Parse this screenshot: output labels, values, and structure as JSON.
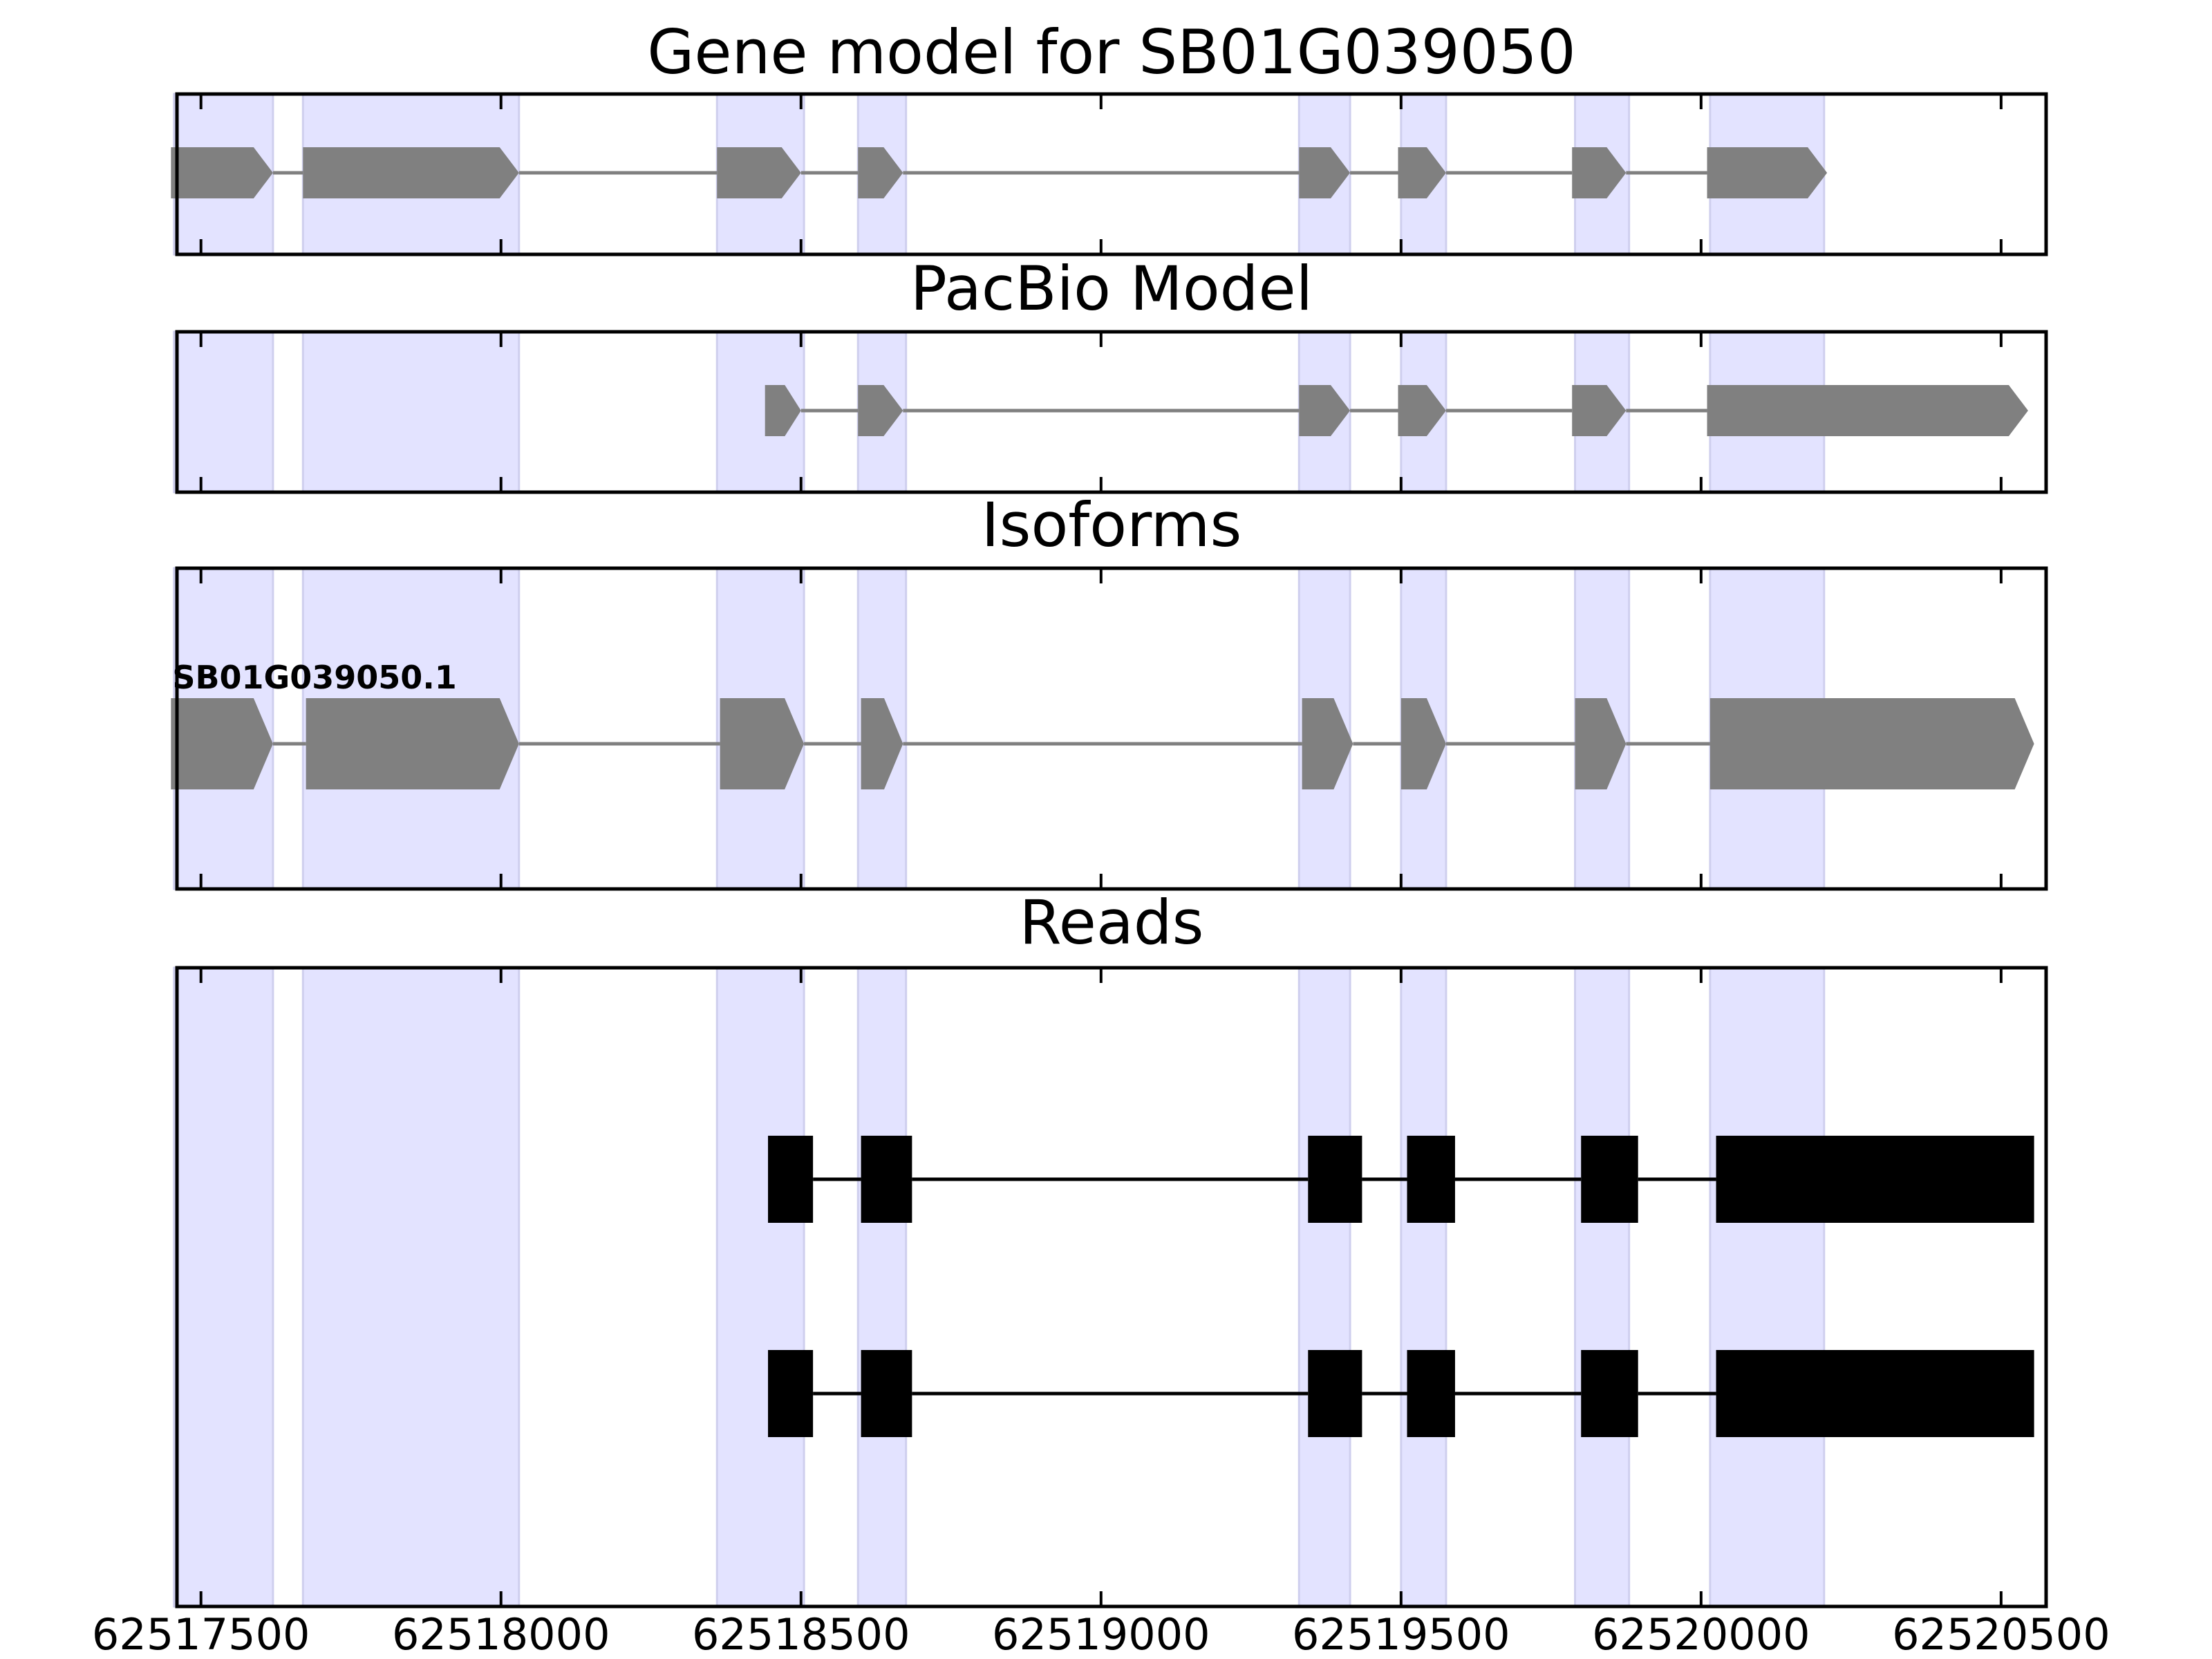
{
  "chart_data": [
    {
      "type": "gene-track",
      "title": "Gene model for SB01G039050",
      "strand": "+",
      "exons": [
        [
          62517450,
          62517620
        ],
        [
          62517670,
          62518030
        ],
        [
          62518360,
          62518500
        ],
        [
          62518595,
          62518670
        ],
        [
          62519330,
          62519415
        ],
        [
          62519495,
          62519575
        ],
        [
          62519785,
          62519875
        ],
        [
          62520010,
          62520210
        ]
      ]
    },
    {
      "type": "gene-track",
      "title": "PacBio Model",
      "strand": "+",
      "exons": [
        [
          62518440,
          62518500
        ],
        [
          62518595,
          62518670
        ],
        [
          62519330,
          62519415
        ],
        [
          62519495,
          62519575
        ],
        [
          62519785,
          62519875
        ],
        [
          62520010,
          62520545
        ]
      ]
    },
    {
      "type": "gene-track",
      "title": "Isoforms",
      "strand": "+",
      "isoforms": [
        {
          "name": "SB01G039050.1",
          "exons": [
            [
              62517450,
              62517620
            ],
            [
              62517675,
              62518030
            ],
            [
              62518365,
              62518505
            ],
            [
              62518600,
              62518670
            ],
            [
              62519335,
              62519420
            ],
            [
              62519500,
              62519575
            ],
            [
              62519790,
              62519875
            ],
            [
              62520015,
              62520555
            ]
          ]
        }
      ]
    },
    {
      "type": "read-track",
      "title": "Reads",
      "reads": [
        {
          "exons": [
            [
              62518445,
              62518520
            ],
            [
              62518600,
              62518685
            ],
            [
              62519345,
              62519435
            ],
            [
              62519510,
              62519590
            ],
            [
              62519800,
              62519895
            ],
            [
              62520025,
              62520555
            ]
          ]
        },
        {
          "exons": [
            [
              62518445,
              62518520
            ],
            [
              62518600,
              62518685
            ],
            [
              62519345,
              62519435
            ],
            [
              62519510,
              62519590
            ],
            [
              62519800,
              62519895
            ],
            [
              62520025,
              62520555
            ]
          ]
        }
      ]
    }
  ],
  "shared_x_axis": {
    "xlim": [
      62517460,
      62520575
    ],
    "ticks": [
      62517500,
      62518000,
      62518500,
      62519000,
      62519500,
      62520000,
      62520500
    ],
    "tick_labels": [
      "62517500",
      "62518000",
      "62518500",
      "62519000",
      "62519500",
      "62520000",
      "62520500"
    ]
  },
  "highlight_regions": [
    [
      62517455,
      62517620
    ],
    [
      62517670,
      62518030
    ],
    [
      62518360,
      62518505
    ],
    [
      62518595,
      62518675
    ],
    [
      62519330,
      62519415
    ],
    [
      62519500,
      62519575
    ],
    [
      62519790,
      62519880
    ],
    [
      62520015,
      62520205
    ]
  ],
  "colors": {
    "highlight": "#e3e3ff",
    "highlight_edge": "#cfcfee",
    "gene_feature": "#808080",
    "read": "#000000",
    "frame": "#000000"
  }
}
